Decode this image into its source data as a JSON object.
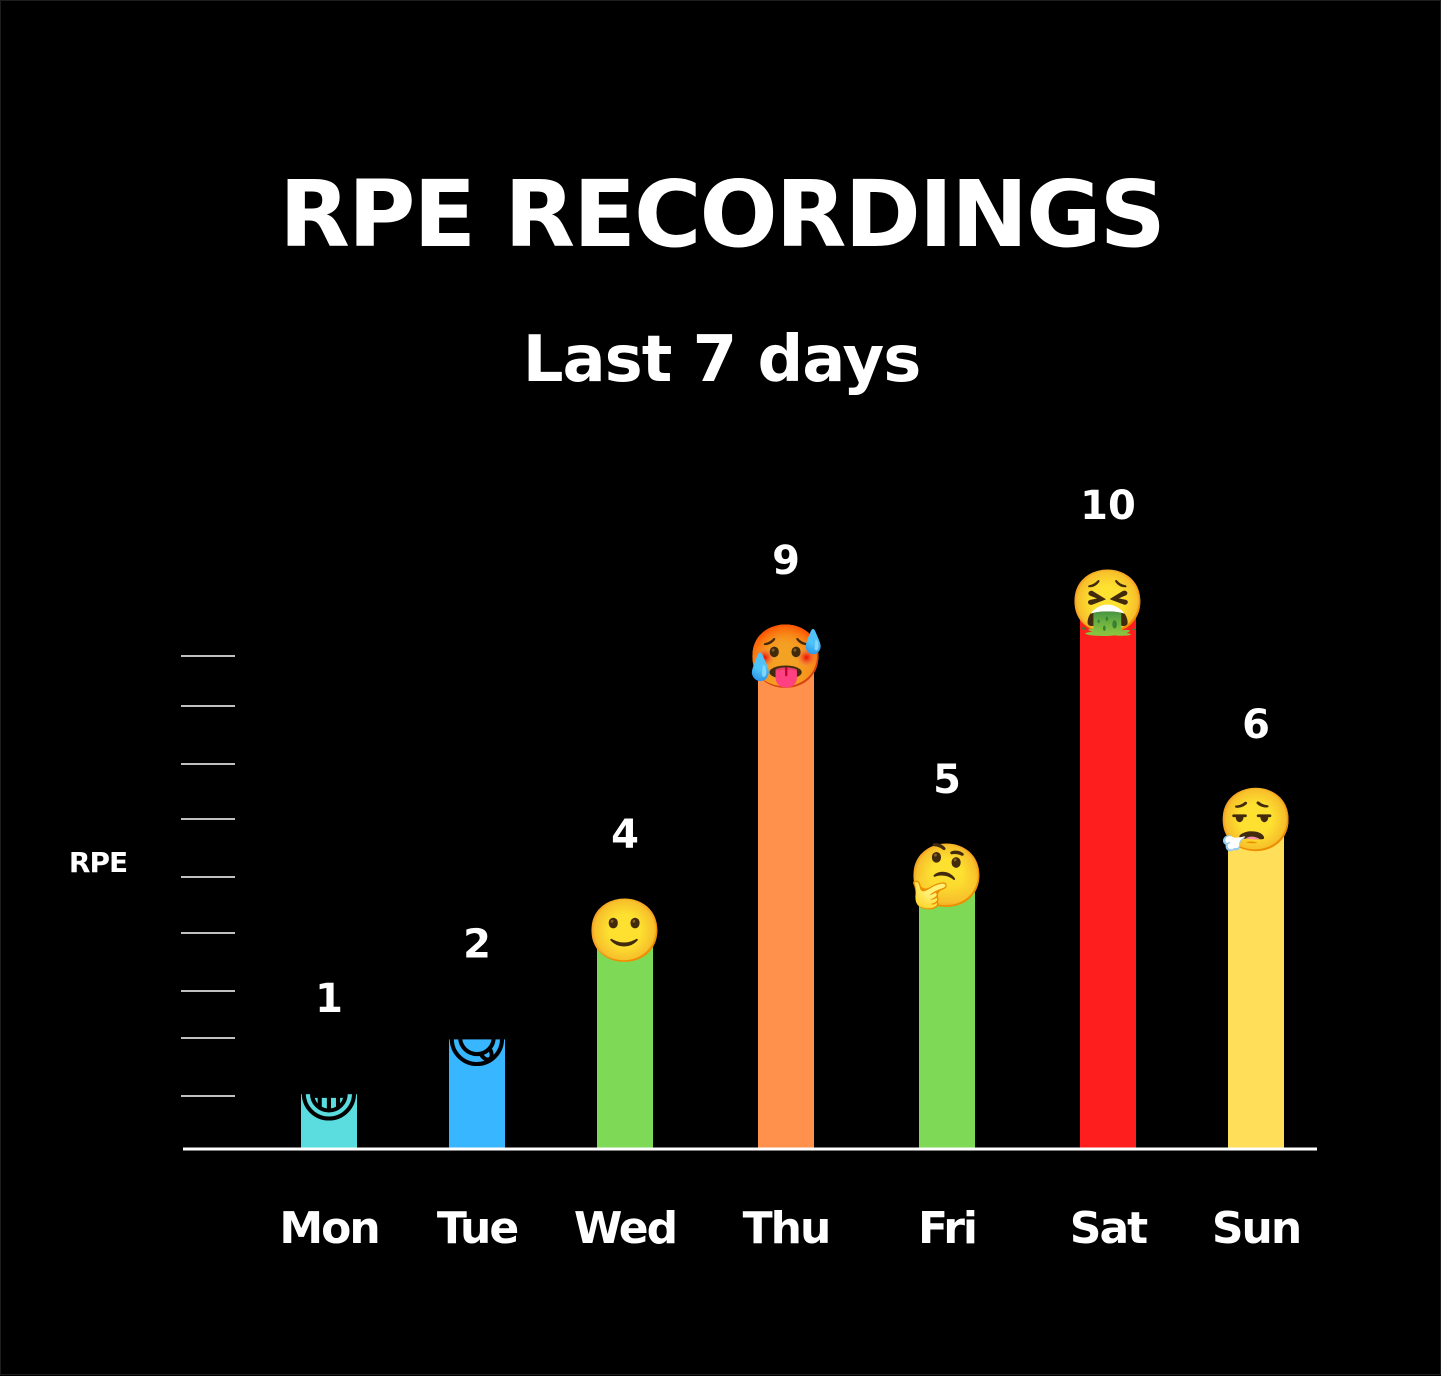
{
  "chart_data": {
    "type": "bar",
    "title": "RPE RECORDINGS",
    "subtitle": "Last 7 days",
    "xlabel": "",
    "ylabel": "RPE",
    "ylim": [
      0,
      10
    ],
    "grid": false,
    "categories": [
      "Mon",
      "Tue",
      "Wed",
      "Thu",
      "Fri",
      "Sat",
      "Sun"
    ],
    "values": [
      1,
      2,
      4,
      9,
      5,
      10,
      6
    ],
    "data_labels": [
      "1",
      "2",
      "4",
      "9",
      "5",
      "10",
      "6"
    ],
    "colors": [
      "#5BDDE0",
      "#38B6FF",
      "#7ED957",
      "#FF914D",
      "#7ED957",
      "#FF1E1E",
      "#FFDE59"
    ],
    "emoji": [
      "😁",
      "😋",
      "🙂",
      "🥵",
      "🤔",
      "🤮",
      "😮‍💨"
    ],
    "emoji_names": [
      "grinning-face-icon",
      "savoring-food-face-icon",
      "slightly-smiling-face-icon",
      "hot-face-icon",
      "thinking-face-icon",
      "vomiting-face-icon",
      "face-exhaling-icon"
    ],
    "background": "#000000",
    "axis_color": "#FFFFFF"
  }
}
